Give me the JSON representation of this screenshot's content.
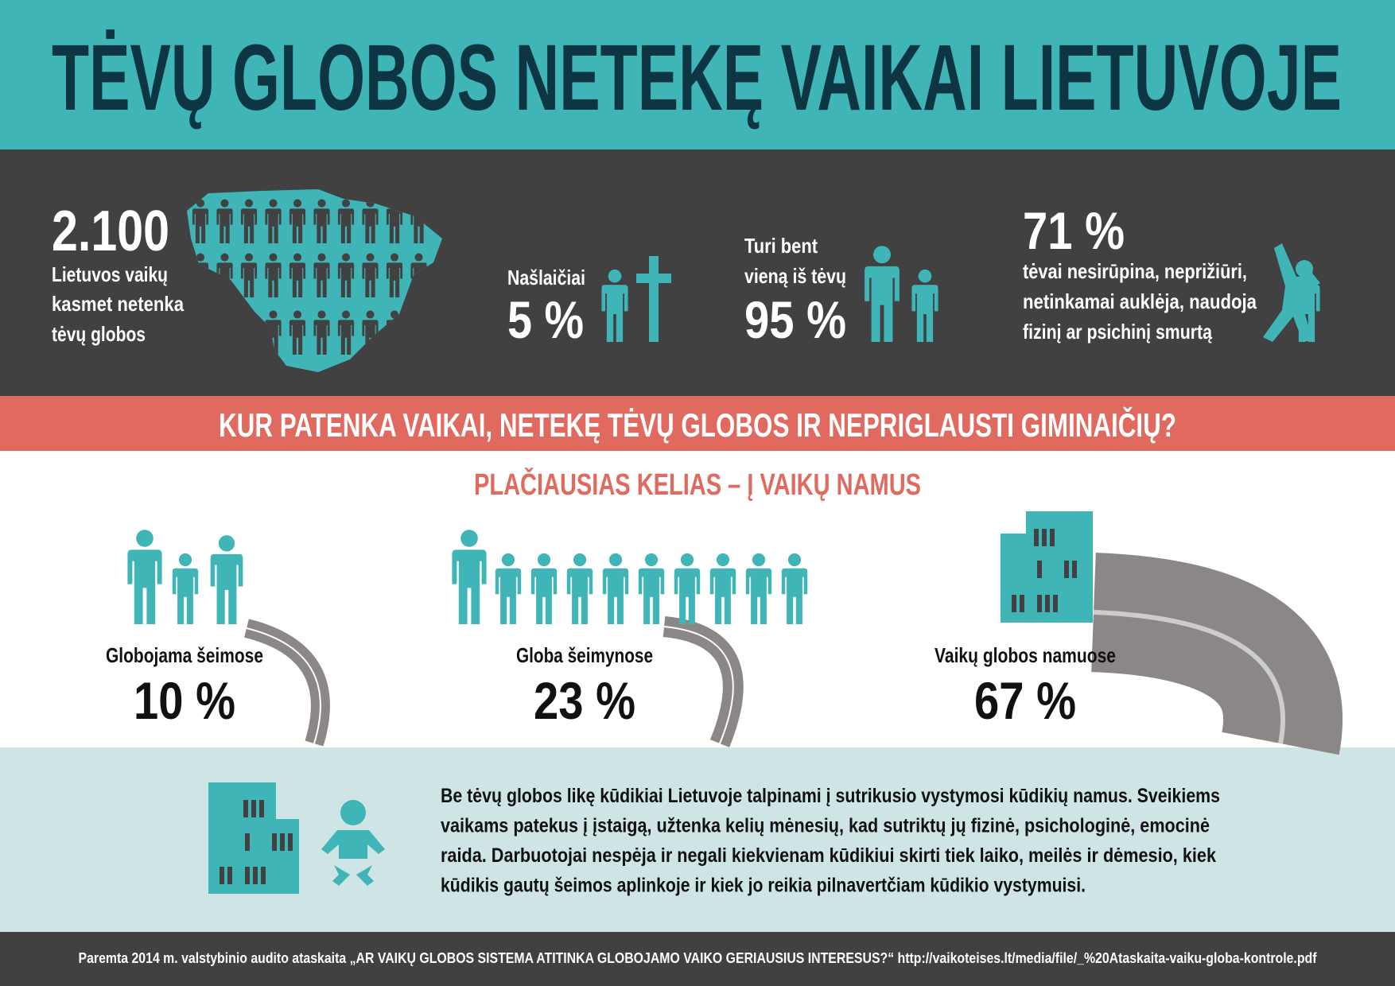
{
  "header": {
    "title": "TĖVŲ GLOBOS NETEKĘ VAIKAI LIETUVOJE"
  },
  "stats": [
    {
      "value": "2.100",
      "lines": [
        "Lietuvos vaikų",
        "kasmet netenka",
        "tėvų globos"
      ]
    },
    {
      "lines": [
        "Našlaičiai"
      ],
      "value": "5 %"
    },
    {
      "lines": [
        "Turi bent",
        "vieną iš tėvų"
      ],
      "value": "95 %"
    },
    {
      "value": "71 %",
      "lines": [
        "tėvai nesirūpina, neprižiūri,",
        "netinkamai auklėja, naudoja",
        "fizinį ar psichinį smurtą"
      ]
    }
  ],
  "question": "KUR PATENKA VAIKAI, NETEKĘ TĖVŲ GLOBOS IR NEPRIGLAUSTI GIMINAIČIŲ?",
  "heading": "PLAČIAUSIAS KELIAS – Į VAIKŲ NAMUS",
  "placements": [
    {
      "label": "Globojama šeimose",
      "value": "10 %"
    },
    {
      "label": "Globa šeimynose",
      "value": "23 %"
    },
    {
      "label": "Vaikų globos namuose",
      "value": "67 %"
    }
  ],
  "note": {
    "lines": [
      "Be tėvų globos likę kūdikiai Lietuvoje talpinami į sutrikusio vystymosi kūdikių namus. Sveikiems",
      "vaikams patekus į įstaigą, užtenka kelių mėnesių, kad sutriktų jų fizinė, psichologinė, emocinė",
      "raida. Darbuotojai nespėja ir negali kiekvienam kūdikiui skirti tiek laiko, meilės ir dėmesio, kiek",
      "kūdikis gautų šeimos aplinkoje ir kiek jo reikia pilnavertčiam kūdikio vystymuisi."
    ]
  },
  "source": "Paremta 2014 m. valstybinio audito ataskaita „AR VAIKŲ GLOBOS SISTEMA ATITINKA GLOBOJAMO VAIKO GERIAUSIUS INTERESUS?“ http://vaikoteises.lt/media/file/_%20Ataskaita-vaiku-globa-kontrole.pdf"
}
